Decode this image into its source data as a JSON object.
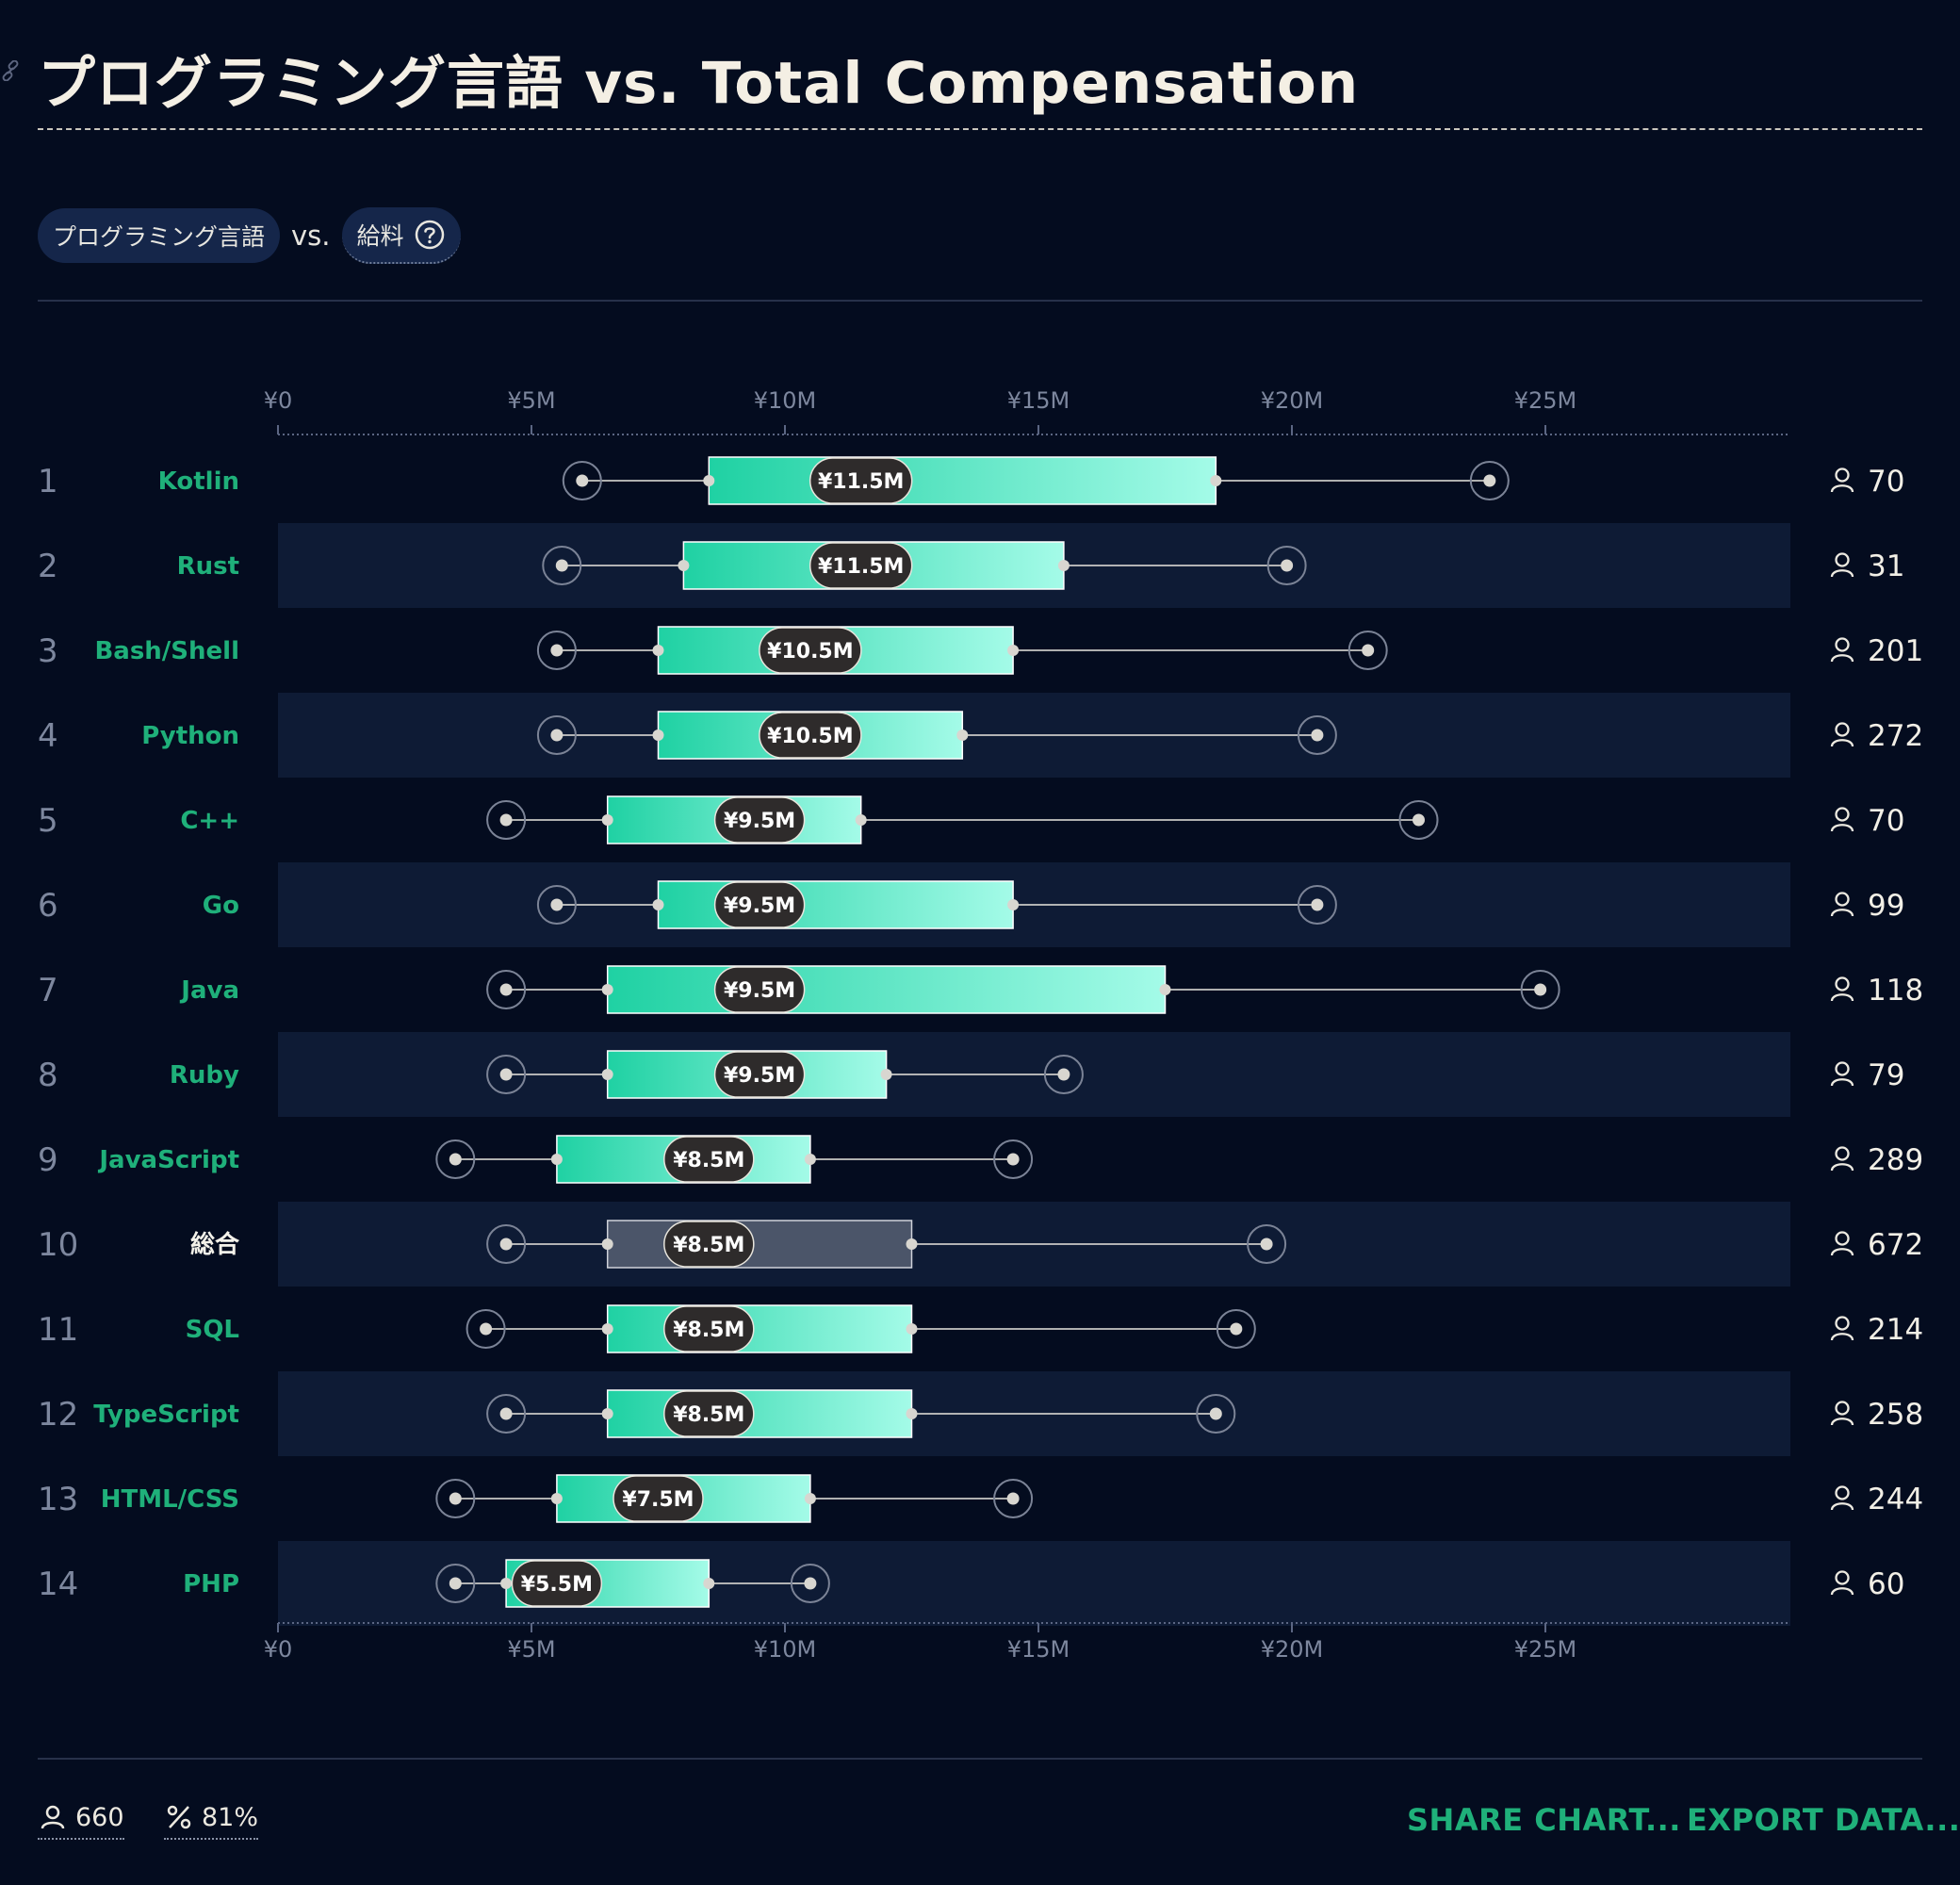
{
  "title": "プログラミング言語 vs. Total Compensation",
  "filters": {
    "primary": "プログラミング言語",
    "connector": "vs.",
    "secondary": "給料"
  },
  "chart_data": {
    "type": "boxplot",
    "x_axis": {
      "unit": "JPY",
      "ticks": [
        0,
        5000000,
        10000000,
        15000000,
        20000000,
        25000000
      ],
      "tick_labels": [
        "¥0",
        "¥5M",
        "¥10M",
        "¥15M",
        "¥20M",
        "¥25M"
      ],
      "range": [
        0,
        30000000
      ]
    },
    "rows": [
      {
        "rank": "1",
        "name": "Kotlin",
        "p10": 6.0,
        "p25": 8.5,
        "median": 11.5,
        "p75": 18.5,
        "p90": 23.9,
        "median_label": "¥11.5M",
        "count": "70",
        "aggregate": false
      },
      {
        "rank": "2",
        "name": "Rust",
        "p10": 5.6,
        "p25": 8.0,
        "median": 11.5,
        "p75": 15.5,
        "p90": 19.9,
        "median_label": "¥11.5M",
        "count": "31",
        "aggregate": false
      },
      {
        "rank": "3",
        "name": "Bash/Shell",
        "p10": 5.5,
        "p25": 7.5,
        "median": 10.5,
        "p75": 14.5,
        "p90": 21.5,
        "median_label": "¥10.5M",
        "count": "201",
        "aggregate": false
      },
      {
        "rank": "4",
        "name": "Python",
        "p10": 5.5,
        "p25": 7.5,
        "median": 10.5,
        "p75": 13.5,
        "p90": 20.5,
        "median_label": "¥10.5M",
        "count": "272",
        "aggregate": false
      },
      {
        "rank": "5",
        "name": "C++",
        "p10": 4.5,
        "p25": 6.5,
        "median": 9.5,
        "p75": 11.5,
        "p90": 22.5,
        "median_label": "¥9.5M",
        "count": "70",
        "aggregate": false
      },
      {
        "rank": "6",
        "name": "Go",
        "p10": 5.5,
        "p25": 7.5,
        "median": 9.5,
        "p75": 14.5,
        "p90": 20.5,
        "median_label": "¥9.5M",
        "count": "99",
        "aggregate": false
      },
      {
        "rank": "7",
        "name": "Java",
        "p10": 4.5,
        "p25": 6.5,
        "median": 9.5,
        "p75": 17.5,
        "p90": 24.9,
        "median_label": "¥9.5M",
        "count": "118",
        "aggregate": false
      },
      {
        "rank": "8",
        "name": "Ruby",
        "p10": 4.5,
        "p25": 6.5,
        "median": 9.5,
        "p75": 12.0,
        "p90": 15.5,
        "median_label": "¥9.5M",
        "count": "79",
        "aggregate": false
      },
      {
        "rank": "9",
        "name": "JavaScript",
        "p10": 3.5,
        "p25": 5.5,
        "median": 8.5,
        "p75": 10.5,
        "p90": 14.5,
        "median_label": "¥8.5M",
        "count": "289",
        "aggregate": false
      },
      {
        "rank": "10",
        "name": "総合",
        "p10": 4.5,
        "p25": 6.5,
        "median": 8.5,
        "p75": 12.5,
        "p90": 19.5,
        "median_label": "¥8.5M",
        "count": "672",
        "aggregate": true
      },
      {
        "rank": "11",
        "name": "SQL",
        "p10": 4.1,
        "p25": 6.5,
        "median": 8.5,
        "p75": 12.5,
        "p90": 18.9,
        "median_label": "¥8.5M",
        "count": "214",
        "aggregate": false
      },
      {
        "rank": "12",
        "name": "TypeScript",
        "p10": 4.5,
        "p25": 6.5,
        "median": 8.5,
        "p75": 12.5,
        "p90": 18.5,
        "median_label": "¥8.5M",
        "count": "258",
        "aggregate": false
      },
      {
        "rank": "13",
        "name": "HTML/CSS",
        "p10": 3.5,
        "p25": 5.5,
        "median": 7.5,
        "p75": 10.5,
        "p90": 14.5,
        "median_label": "¥7.5M",
        "count": "244",
        "aggregate": false
      },
      {
        "rank": "14",
        "name": "PHP",
        "p10": 3.5,
        "p25": 4.5,
        "median": 5.5,
        "p75": 8.5,
        "p90": 10.5,
        "median_label": "¥5.5M",
        "count": "60",
        "aggregate": false
      }
    ],
    "value_scale": "millions of JPY",
    "colors": {
      "box_start": "#1fd1a3",
      "box_end": "#a4fbe8",
      "aggregate_box": "#4b5569",
      "label_name": "#1fb07a",
      "stripe": "#0e1b35"
    }
  },
  "footer": {
    "respondents": "660",
    "percent": "81%"
  },
  "actions": {
    "share": "SHARE CHART...",
    "export": "EXPORT DATA..."
  },
  "icons": {
    "link": "link-icon",
    "help": "question-circle-icon",
    "person": "person-icon",
    "percent": "percent-icon"
  }
}
